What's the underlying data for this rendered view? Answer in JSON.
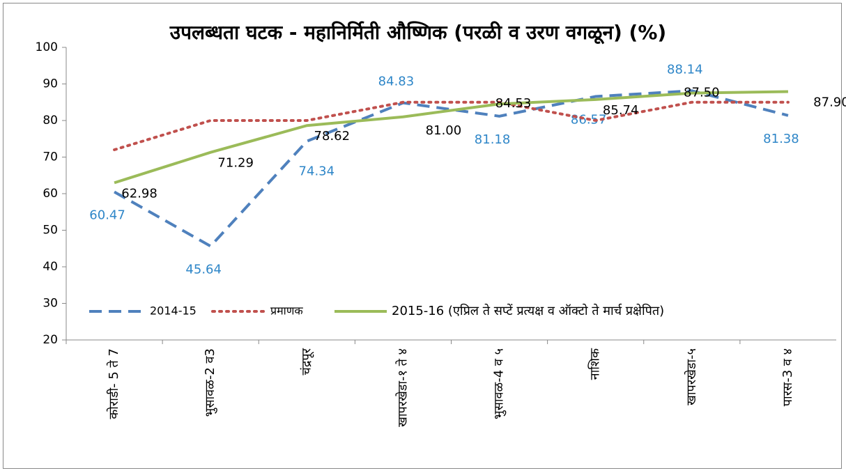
{
  "chart_data": {
    "type": "line",
    "title": "उपलब्धता घटक - महानिर्मिती औष्णिक (परळी व उरण वगळून) (%)",
    "categories": [
      "कोराडी- 5 ते 7",
      "भुसावळ-2 व3",
      "चंद्रपूर",
      "खापरखेडा-१ ते ४",
      "भुसावळ-4 व ५",
      "नाशिक",
      "खापरखेडा-५",
      "पारस-3 व ४"
    ],
    "series": [
      {
        "name": "2014-15",
        "color": "#4f81bd",
        "dash": "dashed",
        "values": [
          60.47,
          45.64,
          74.34,
          84.83,
          81.18,
          86.57,
          88.14,
          81.38
        ],
        "value_labels": [
          "60.47",
          "45.64",
          "74.34",
          "84.83",
          "81.18",
          "86.57",
          "88.14",
          "81.38"
        ]
      },
      {
        "name": "प्रमाणक",
        "color": "#c0504d",
        "dash": "dotted",
        "values": [
          72,
          80,
          80,
          85,
          85,
          80,
          85,
          85
        ]
      },
      {
        "name": "2015-16 (एप्रिल ते सप्टें प्रत्यक्ष व ऑक्टो ते मार्च प्रक्षेपित)",
        "color": "#9bbb59",
        "dash": "solid",
        "values": [
          62.98,
          71.29,
          78.62,
          81.0,
          84.53,
          85.74,
          87.5,
          87.9
        ],
        "value_labels": [
          "62.98",
          "71.29",
          "78.62",
          "81.00",
          "84.53",
          "85.74",
          "87.50",
          "87.90"
        ]
      }
    ],
    "ylim": [
      20,
      100
    ],
    "yticks": [
      20,
      30,
      40,
      50,
      60,
      70,
      80,
      90,
      100
    ],
    "legend": "bottom-inside"
  }
}
